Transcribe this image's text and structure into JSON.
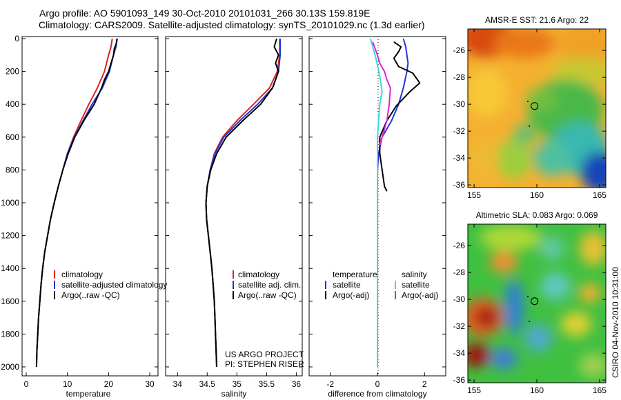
{
  "header": {
    "line1": "Argo profile: AO 5901093_149 30-Oct-2010 20101031_266 30.13S 159.819E",
    "line2": "Climatology: CARS2009. Satellite-adjusted climatology: synTS_20101029.nc (1.3d earlier)"
  },
  "footer": {
    "project": "US ARGO PROJECT",
    "pi": "PI: STEPHEN RISER"
  },
  "side_label": "CSIRO 04-Nov-2010 10:31:00",
  "colors": {
    "red": "#dd2222",
    "blue": "#1f35d6",
    "black": "#000000",
    "cyan": "#33dddd",
    "magenta": "#dd22dd"
  },
  "chart_data": [
    {
      "type": "line",
      "panel": "temperature",
      "xlabel": "temperature",
      "xlim": [
        -1,
        32
      ],
      "ylim": [
        2050,
        0
      ],
      "xticks": [
        0,
        10,
        20,
        30
      ],
      "yticks": [
        0,
        200,
        400,
        600,
        800,
        1000,
        1200,
        1400,
        1600,
        1800,
        2000
      ],
      "legend": [
        "climatology",
        "satellite-adjusted climatology",
        "Argo(..raw -QC)"
      ],
      "series": [
        {
          "name": "climatology",
          "color": "red",
          "points": [
            [
              20.9,
              0
            ],
            [
              20.6,
              50
            ],
            [
              20.0,
              100
            ],
            [
              19.0,
              200
            ],
            [
              17.3,
              300
            ],
            [
              15.2,
              400
            ],
            [
              13.3,
              500
            ],
            [
              11.5,
              600
            ],
            [
              10.0,
              700
            ],
            [
              8.9,
              800
            ],
            [
              7.8,
              900
            ],
            [
              6.8,
              1000
            ],
            [
              5.9,
              1100
            ],
            [
              5.2,
              1200
            ],
            [
              4.5,
              1300
            ],
            [
              4.0,
              1400
            ],
            [
              3.6,
              1500
            ],
            [
              3.3,
              1600
            ],
            [
              3.0,
              1700
            ],
            [
              2.8,
              1800
            ],
            [
              2.6,
              1900
            ],
            [
              2.5,
              2000
            ]
          ]
        },
        {
          "name": "satellite-adjusted climatology",
          "color": "blue",
          "points": [
            [
              22.0,
              0
            ],
            [
              21.8,
              50
            ],
            [
              21.2,
              100
            ],
            [
              20.2,
              200
            ],
            [
              18.5,
              300
            ],
            [
              16.0,
              400
            ],
            [
              13.8,
              500
            ],
            [
              11.7,
              600
            ],
            [
              10.0,
              700
            ],
            [
              8.9,
              800
            ],
            [
              7.8,
              900
            ],
            [
              6.8,
              1000
            ],
            [
              5.9,
              1100
            ],
            [
              5.2,
              1200
            ],
            [
              4.5,
              1300
            ],
            [
              4.0,
              1400
            ],
            [
              3.6,
              1500
            ],
            [
              3.3,
              1600
            ],
            [
              3.0,
              1700
            ],
            [
              2.8,
              1800
            ],
            [
              2.6,
              1900
            ],
            [
              2.5,
              2000
            ]
          ]
        },
        {
          "name": "Argo(..raw -QC)",
          "color": "black",
          "points": [
            [
              22.1,
              0
            ],
            [
              21.9,
              30
            ],
            [
              21.4,
              60
            ],
            [
              21.2,
              100
            ],
            [
              20.6,
              150
            ],
            [
              20.0,
              200
            ],
            [
              19.0,
              250
            ],
            [
              18.3,
              300
            ],
            [
              16.5,
              400
            ],
            [
              14.0,
              500
            ],
            [
              11.8,
              600
            ],
            [
              10.2,
              700
            ],
            [
              8.9,
              800
            ],
            [
              7.8,
              900
            ],
            [
              6.8,
              1000
            ],
            [
              5.9,
              1100
            ],
            [
              5.2,
              1200
            ],
            [
              4.5,
              1300
            ],
            [
              4.0,
              1400
            ],
            [
              3.6,
              1500
            ],
            [
              3.3,
              1600
            ],
            [
              3.0,
              1700
            ],
            [
              2.8,
              1800
            ],
            [
              2.6,
              1900
            ],
            [
              2.5,
              2000
            ]
          ]
        }
      ]
    },
    {
      "type": "line",
      "panel": "salinity",
      "xlabel": "salinity",
      "xlim": [
        33.8,
        36.1
      ],
      "ylim": [
        2050,
        0
      ],
      "xticks": [
        34,
        34.5,
        35,
        35.5,
        36
      ],
      "legend": [
        "climatology",
        "satellite adj. clim.",
        "Argo(..raw -QC)"
      ],
      "series": [
        {
          "name": "climatology",
          "color": "red",
          "points": [
            [
              35.72,
              0
            ],
            [
              35.72,
              100
            ],
            [
              35.68,
              200
            ],
            [
              35.55,
              300
            ],
            [
              35.28,
              400
            ],
            [
              35.0,
              500
            ],
            [
              34.76,
              600
            ],
            [
              34.62,
              700
            ],
            [
              34.55,
              800
            ],
            [
              34.5,
              900
            ],
            [
              34.48,
              1000
            ],
            [
              34.49,
              1100
            ],
            [
              34.52,
              1200
            ],
            [
              34.55,
              1300
            ],
            [
              34.58,
              1400
            ],
            [
              34.6,
              1500
            ],
            [
              34.62,
              1600
            ],
            [
              34.63,
              1700
            ],
            [
              34.64,
              1800
            ],
            [
              34.65,
              1900
            ],
            [
              34.66,
              2000
            ]
          ]
        },
        {
          "name": "satellite adj. clim.",
          "color": "blue",
          "points": [
            [
              35.73,
              0
            ],
            [
              35.73,
              100
            ],
            [
              35.7,
              200
            ],
            [
              35.6,
              300
            ],
            [
              35.35,
              400
            ],
            [
              35.05,
              500
            ],
            [
              34.78,
              600
            ],
            [
              34.63,
              700
            ],
            [
              34.55,
              800
            ],
            [
              34.5,
              900
            ],
            [
              34.48,
              1000
            ],
            [
              34.49,
              1100
            ],
            [
              34.52,
              1200
            ],
            [
              34.55,
              1300
            ],
            [
              34.58,
              1400
            ],
            [
              34.6,
              1500
            ],
            [
              34.62,
              1600
            ],
            [
              34.63,
              1700
            ],
            [
              34.64,
              1800
            ],
            [
              34.65,
              1900
            ],
            [
              34.66,
              2000
            ]
          ]
        },
        {
          "name": "Argo(..raw -QC)",
          "color": "black",
          "points": [
            [
              35.67,
              0
            ],
            [
              35.63,
              50
            ],
            [
              35.7,
              100
            ],
            [
              35.65,
              150
            ],
            [
              35.7,
              200
            ],
            [
              35.6,
              300
            ],
            [
              35.4,
              400
            ],
            [
              35.1,
              500
            ],
            [
              34.82,
              600
            ],
            [
              34.66,
              700
            ],
            [
              34.56,
              800
            ],
            [
              34.5,
              900
            ],
            [
              34.48,
              1000
            ],
            [
              34.49,
              1100
            ],
            [
              34.52,
              1200
            ],
            [
              34.55,
              1300
            ],
            [
              34.58,
              1400
            ],
            [
              34.6,
              1500
            ],
            [
              34.62,
              1600
            ],
            [
              34.63,
              1700
            ],
            [
              34.64,
              1800
            ],
            [
              34.65,
              1900
            ],
            [
              34.66,
              2000
            ]
          ]
        }
      ]
    },
    {
      "type": "line",
      "panel": "difference",
      "xlabel": "difference from climatology",
      "xlim": [
        -2.9,
        2.9
      ],
      "ylim": [
        2050,
        0
      ],
      "xticks": [
        -2,
        0,
        2
      ],
      "legend_groups": [
        {
          "title": "temperature",
          "items": [
            "satellite",
            "Argo(-adj)"
          ]
        },
        {
          "title": "salinity",
          "items": [
            "satellite",
            "Argo(-adj)"
          ]
        }
      ],
      "series": [
        {
          "name": "temperature satellite",
          "color": "blue",
          "points": [
            [
              1.1,
              0
            ],
            [
              1.2,
              50
            ],
            [
              1.25,
              100
            ],
            [
              1.3,
              150
            ],
            [
              1.25,
              200
            ],
            [
              1.1,
              300
            ],
            [
              0.9,
              400
            ],
            [
              0.6,
              500
            ],
            [
              0.2,
              600
            ],
            [
              0.05,
              700
            ],
            [
              0.0,
              800
            ],
            [
              0.0,
              1000
            ],
            [
              0.0,
              2000
            ]
          ]
        },
        {
          "name": "temperature Argo(-adj)",
          "color": "black",
          "points": [
            [
              0.7,
              20
            ],
            [
              1.0,
              50
            ],
            [
              0.9,
              80
            ],
            [
              0.7,
              120
            ],
            [
              0.9,
              170
            ],
            [
              1.5,
              210
            ],
            [
              1.8,
              270
            ],
            [
              1.4,
              320
            ],
            [
              0.8,
              410
            ],
            [
              0.4,
              500
            ],
            [
              0.1,
              600
            ],
            [
              0.1,
              700
            ],
            [
              0.2,
              800
            ],
            [
              0.3,
              900
            ],
            [
              0.4,
              930
            ]
          ]
        },
        {
          "name": "salinity satellite",
          "color": "cyan",
          "points": [
            [
              -0.3,
              0
            ],
            [
              -0.2,
              50
            ],
            [
              -0.1,
              100
            ],
            [
              0.0,
              160
            ],
            [
              0.1,
              230
            ],
            [
              0.2,
              320
            ],
            [
              0.1,
              400
            ],
            [
              0.05,
              500
            ],
            [
              0.0,
              600
            ],
            [
              0.0,
              700
            ],
            [
              0.0,
              1000
            ],
            [
              0.0,
              2000
            ]
          ]
        },
        {
          "name": "salinity Argo(-adj)",
          "color": "magenta",
          "points": [
            [
              -0.2,
              20
            ],
            [
              -0.1,
              60
            ],
            [
              0.0,
              100
            ],
            [
              0.1,
              150
            ],
            [
              0.3,
              200
            ],
            [
              0.4,
              250
            ],
            [
              0.55,
              300
            ],
            [
              0.5,
              400
            ],
            [
              0.4,
              500
            ],
            [
              0.2,
              600
            ],
            [
              0.1,
              650
            ]
          ]
        }
      ]
    },
    {
      "type": "heatmap",
      "panel": "amsr-e-sst",
      "title": "AMSR-E SST: 21.6 Argo: 22",
      "xlim": [
        154.5,
        165.5
      ],
      "ylim": [
        -36.2,
        -24.4
      ],
      "xticks": [
        155,
        160,
        165
      ],
      "yticks": [
        -26,
        -28,
        -30,
        -32,
        -34,
        -36
      ],
      "argo_position": [
        159.82,
        -30.13
      ]
    },
    {
      "type": "heatmap",
      "panel": "altimetric-sla",
      "title": "Altimetric SLA: 0.083 Argo: 0.069",
      "xlim": [
        154.5,
        165.5
      ],
      "ylim": [
        -36.2,
        -24.4
      ],
      "xticks": [
        155,
        160,
        165
      ],
      "yticks": [
        -26,
        -28,
        -30,
        -32,
        -34,
        -36
      ],
      "argo_position": [
        159.82,
        -30.13
      ]
    }
  ]
}
